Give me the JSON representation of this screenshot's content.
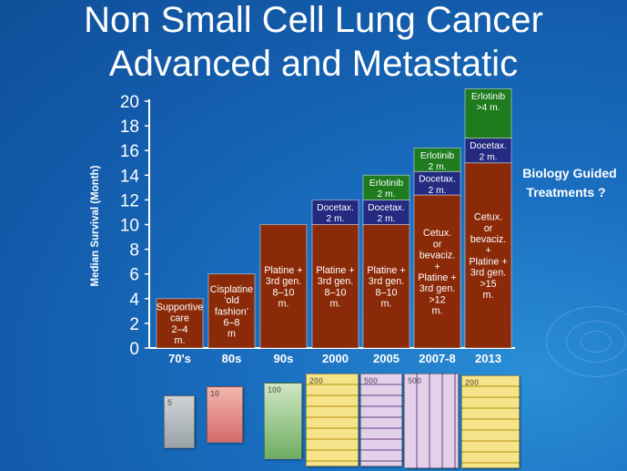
{
  "slide": {
    "title_line1": "Non Small Cell Lung Cancer",
    "title_line2": "Advanced and Metastatic",
    "annotation_line1": "Biology Guided",
    "annotation_line2": "Treatments ?"
  },
  "colors": {
    "bar_brown": "#8b2a08",
    "docetax_navy": "#232a80",
    "erlotinib_green": "#1e7b1e",
    "annotation_text": "#ffffff",
    "background": "#1565b7"
  },
  "chart_data": {
    "type": "bar",
    "stacked": true,
    "ylabel": "Median Survival (Month)",
    "ylim": [
      0,
      20
    ],
    "yticks": [
      0,
      2,
      4,
      6,
      8,
      10,
      12,
      14,
      16,
      18,
      20
    ],
    "categories": [
      "70's",
      "80s",
      "90s",
      "2000",
      "2005",
      "2007-8",
      "2013"
    ],
    "bars": [
      {
        "category": "70's",
        "segments": [
          {
            "type": "base",
            "from": 0,
            "to": 4,
            "label": [
              "Supportive",
              "care",
              "2–4",
              "m."
            ]
          }
        ]
      },
      {
        "category": "80s",
        "segments": [
          {
            "type": "base",
            "from": 0,
            "to": 6,
            "label": [
              "Cisplatine",
              "‘old",
              "fashion’",
              "6–8",
              "m"
            ]
          }
        ]
      },
      {
        "category": "90s",
        "segments": [
          {
            "type": "base",
            "from": 0,
            "to": 10,
            "label": [
              "Platine +",
              "3rd gen.",
              "8–10",
              "m."
            ]
          }
        ]
      },
      {
        "category": "2000",
        "segments": [
          {
            "type": "base",
            "from": 0,
            "to": 10,
            "label": [
              "Platine +",
              "3rd gen.",
              "8–10",
              "m."
            ]
          },
          {
            "type": "docetax",
            "from": 10,
            "to": 12,
            "label": [
              "Docetax.",
              "2 m."
            ]
          }
        ]
      },
      {
        "category": "2005",
        "segments": [
          {
            "type": "base",
            "from": 0,
            "to": 10,
            "label": [
              "Platine +",
              "3rd gen.",
              "8–10",
              "m."
            ]
          },
          {
            "type": "docetax",
            "from": 10,
            "to": 12,
            "label": [
              "Docetax.",
              "2 m."
            ]
          },
          {
            "type": "erlotinib",
            "from": 12,
            "to": 14,
            "label": [
              "Erlotinib",
              "2 m."
            ]
          }
        ]
      },
      {
        "category": "2007-8",
        "segments": [
          {
            "type": "base",
            "from": 0,
            "to": 12.4,
            "label": [
              "Cetux.",
              "or",
              "bevaciz.",
              "+",
              "Platine +",
              "3rd gen.",
              ">12",
              "m."
            ]
          },
          {
            "type": "docetax",
            "from": 12.4,
            "to": 14.3,
            "label": [
              "Docetax.",
              "2 m."
            ]
          },
          {
            "type": "erlotinib",
            "from": 14.3,
            "to": 16.2,
            "label": [
              "Erlotinib",
              "2 m."
            ]
          }
        ]
      },
      {
        "category": "2013",
        "segments": [
          {
            "type": "base",
            "from": 0,
            "to": 15,
            "label": [
              "Cetux.",
              "or",
              "bevaciz.",
              "+",
              "Platine +",
              "3rd gen.",
              ">15",
              "m."
            ]
          },
          {
            "type": "docetax",
            "from": 15,
            "to": 17,
            "label": [
              "Docetax.",
              "2 m."
            ]
          },
          {
            "type": "erlotinib",
            "from": 17,
            "to": 21,
            "label": [
              "Erlotinib",
              ">4 m."
            ]
          }
        ]
      }
    ]
  }
}
